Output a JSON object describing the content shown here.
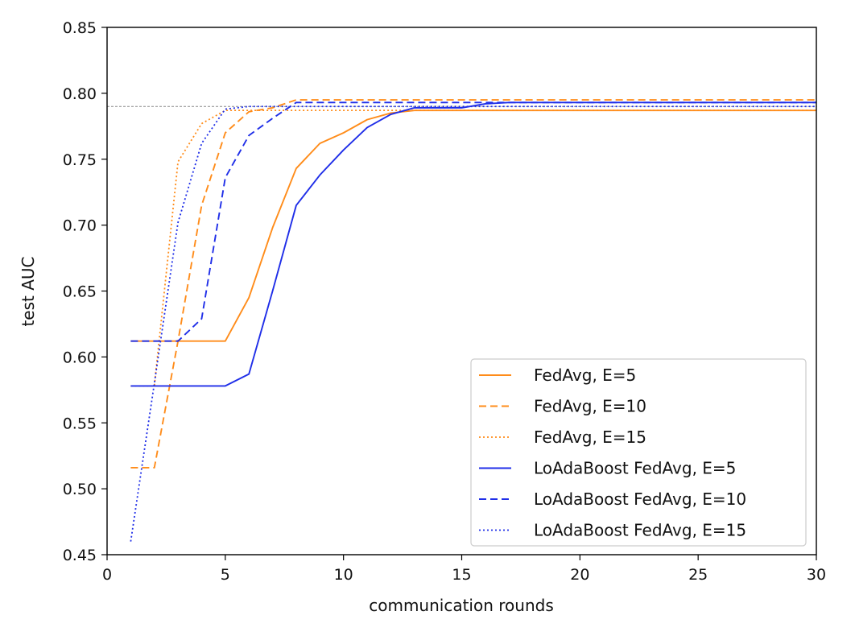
{
  "chart_data": {
    "type": "line",
    "title": "",
    "xlabel": "communication rounds",
    "ylabel": "test AUC",
    "xlim": [
      0,
      30
    ],
    "ylim": [
      0.45,
      0.85
    ],
    "xticks": [
      0,
      5,
      10,
      15,
      20,
      25,
      30
    ],
    "xtick_labels": [
      "0",
      "5",
      "10",
      "15",
      "20",
      "25",
      "30"
    ],
    "yticks": [
      0.45,
      0.5,
      0.55,
      0.6,
      0.65,
      0.7,
      0.75,
      0.8,
      0.85
    ],
    "ytick_labels": [
      "0.45",
      "0.50",
      "0.55",
      "0.60",
      "0.65",
      "0.70",
      "0.75",
      "0.80",
      "0.85"
    ],
    "grid": false,
    "legend_position": "lower-right",
    "reference_line": {
      "y": 0.79,
      "color": "#888888",
      "style": "dashed"
    },
    "series": [
      {
        "name": "FedAvg, E=5",
        "color": "#ff8c1a",
        "style": "solid",
        "x": [
          1,
          2,
          3,
          4,
          5,
          6,
          7,
          8,
          9,
          10,
          11,
          12,
          13,
          14,
          15,
          16,
          17,
          18,
          19,
          20,
          21,
          22,
          23,
          24,
          25,
          26,
          27,
          28,
          29,
          30
        ],
        "y": [
          0.612,
          0.612,
          0.612,
          0.612,
          0.612,
          0.645,
          0.698,
          0.743,
          0.762,
          0.77,
          0.78,
          0.785,
          0.787,
          0.787,
          0.787,
          0.787,
          0.787,
          0.787,
          0.787,
          0.787,
          0.787,
          0.787,
          0.787,
          0.787,
          0.787,
          0.787,
          0.787,
          0.787,
          0.787,
          0.787
        ]
      },
      {
        "name": "FedAvg, E=10",
        "color": "#ff8c1a",
        "style": "dashed",
        "x": [
          1,
          2,
          3,
          4,
          5,
          6,
          7,
          8,
          9,
          10,
          11,
          12,
          13,
          14,
          15,
          16,
          17,
          18,
          19,
          20,
          21,
          22,
          23,
          24,
          25,
          26,
          27,
          28,
          29,
          30
        ],
        "y": [
          0.516,
          0.516,
          0.612,
          0.715,
          0.77,
          0.786,
          0.789,
          0.795,
          0.795,
          0.795,
          0.795,
          0.795,
          0.795,
          0.795,
          0.795,
          0.795,
          0.795,
          0.795,
          0.795,
          0.795,
          0.795,
          0.795,
          0.795,
          0.795,
          0.795,
          0.795,
          0.795,
          0.795,
          0.795,
          0.795
        ]
      },
      {
        "name": "FedAvg, E=15",
        "color": "#ff8c1a",
        "style": "dotted",
        "x": [
          1,
          2,
          3,
          4,
          5,
          6,
          7,
          8,
          9,
          10,
          11,
          12,
          13,
          14,
          15,
          16,
          17,
          18,
          19,
          20,
          21,
          22,
          23,
          24,
          25,
          26,
          27,
          28,
          29,
          30
        ],
        "y": [
          0.578,
          0.578,
          0.748,
          0.777,
          0.787,
          0.787,
          0.787,
          0.787,
          0.787,
          0.787,
          0.787,
          0.787,
          0.787,
          0.787,
          0.787,
          0.787,
          0.787,
          0.787,
          0.787,
          0.787,
          0.787,
          0.787,
          0.787,
          0.787,
          0.787,
          0.787,
          0.787,
          0.787,
          0.787,
          0.787
        ]
      },
      {
        "name": "LoAdaBoost FedAvg, E=5",
        "color": "#1f2ee8",
        "style": "solid",
        "x": [
          1,
          2,
          3,
          4,
          5,
          6,
          7,
          8,
          9,
          10,
          11,
          12,
          13,
          14,
          15,
          16,
          17,
          18,
          19,
          20,
          21,
          22,
          23,
          24,
          25,
          26,
          27,
          28,
          29,
          30
        ],
        "y": [
          0.578,
          0.578,
          0.578,
          0.578,
          0.578,
          0.587,
          0.65,
          0.715,
          0.738,
          0.757,
          0.774,
          0.784,
          0.789,
          0.789,
          0.789,
          0.792,
          0.793,
          0.793,
          0.793,
          0.793,
          0.793,
          0.793,
          0.793,
          0.793,
          0.793,
          0.793,
          0.793,
          0.793,
          0.793,
          0.793
        ]
      },
      {
        "name": "LoAdaBoost FedAvg, E=10",
        "color": "#1f2ee8",
        "style": "dashed",
        "x": [
          1,
          2,
          3,
          4,
          5,
          6,
          7,
          8,
          9,
          10,
          11,
          12,
          13,
          14,
          15,
          16,
          17,
          18,
          19,
          20,
          21,
          22,
          23,
          24,
          25,
          26,
          27,
          28,
          29,
          30
        ],
        "y": [
          0.612,
          0.612,
          0.612,
          0.629,
          0.736,
          0.768,
          0.781,
          0.793,
          0.793,
          0.793,
          0.793,
          0.793,
          0.793,
          0.793,
          0.793,
          0.793,
          0.793,
          0.793,
          0.793,
          0.793,
          0.793,
          0.793,
          0.793,
          0.793,
          0.793,
          0.793,
          0.793,
          0.793,
          0.793,
          0.793
        ]
      },
      {
        "name": "LoAdaBoost FedAvg, E=15",
        "color": "#1f2ee8",
        "style": "dotted",
        "x": [
          1,
          2,
          3,
          4,
          5,
          6,
          7,
          8,
          9,
          10,
          11,
          12,
          13,
          14,
          15,
          16,
          17,
          18,
          19,
          20,
          21,
          22,
          23,
          24,
          25,
          26,
          27,
          28,
          29,
          30
        ],
        "y": [
          0.46,
          0.58,
          0.702,
          0.762,
          0.788,
          0.79,
          0.79,
          0.79,
          0.79,
          0.79,
          0.79,
          0.79,
          0.79,
          0.79,
          0.79,
          0.79,
          0.79,
          0.79,
          0.79,
          0.79,
          0.79,
          0.79,
          0.79,
          0.79,
          0.79,
          0.79,
          0.79,
          0.79,
          0.79,
          0.79
        ]
      }
    ]
  }
}
